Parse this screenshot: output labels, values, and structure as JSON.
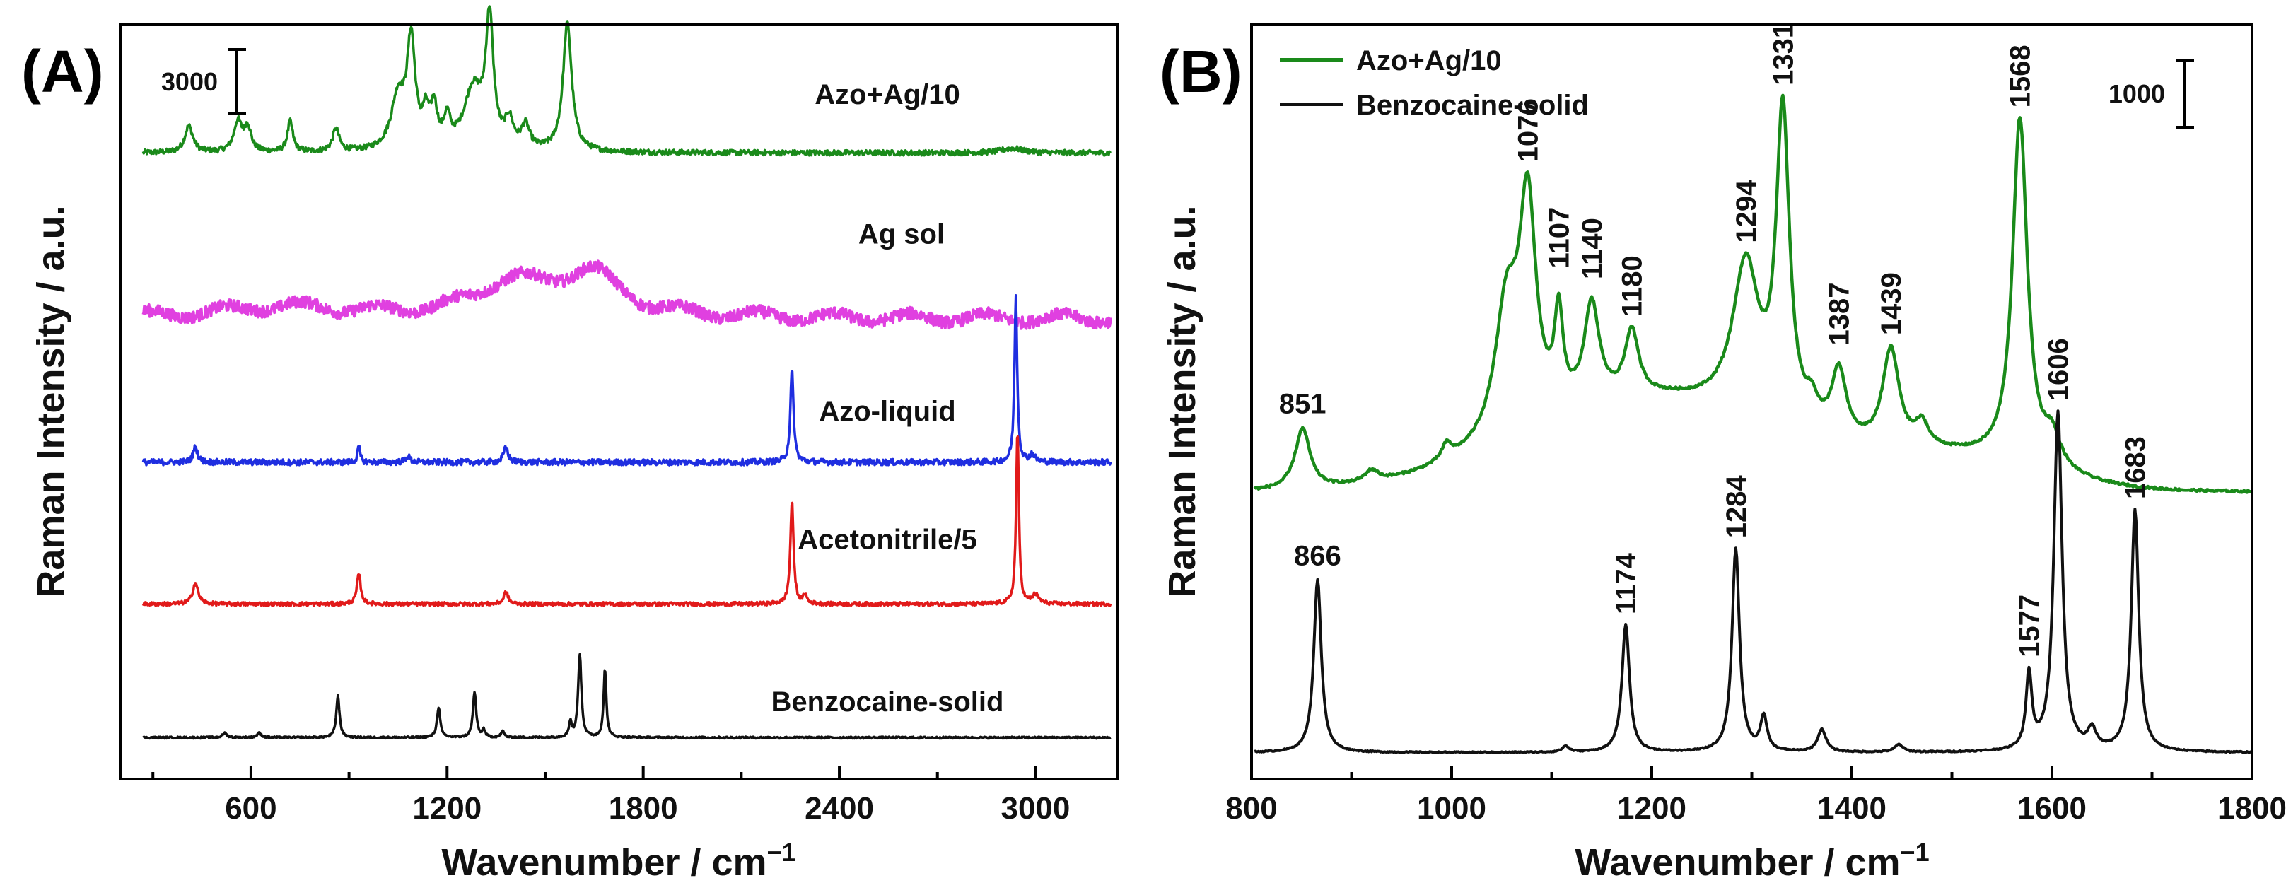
{
  "colors": {
    "azo_ag": "#1a8a1a",
    "ag_sol": "#e040e0",
    "azo_liquid": "#1f2ee0",
    "acetonitrile": "#e11a1a",
    "benzocaine": "#111111"
  },
  "chart_data": [
    {
      "panel": "(A)",
      "type": "line",
      "xlabel": "Wavenumber / cm",
      "xlabel_superscript": "−1",
      "ylabel": "Raman Intensity / a.u.",
      "xlim": [
        200,
        3250
      ],
      "xticks": [
        "600",
        "1200",
        "1800",
        "2400",
        "3000"
      ],
      "scale_bar": {
        "label": "3000"
      },
      "series": [
        {
          "name": "Azo+Ag/10",
          "color": "#1a8a1a",
          "baseline": 0.83,
          "noise": 0.0035,
          "ripple": 0,
          "peaks": [
            [
              410,
              0.035,
              15
            ],
            [
              560,
              0.04,
              15
            ],
            [
              590,
              0.032,
              12
            ],
            [
              720,
              0.04,
              10
            ],
            [
              860,
              0.03,
              12
            ],
            [
              1050,
              0.07,
              25
            ],
            [
              1090,
              0.14,
              15
            ],
            [
              1135,
              0.04,
              12
            ],
            [
              1160,
              0.05,
              12
            ],
            [
              1200,
              0.035,
              12
            ],
            [
              1280,
              0.08,
              35
            ],
            [
              1330,
              0.165,
              14
            ],
            [
              1390,
              0.035,
              15
            ],
            [
              1440,
              0.03,
              15
            ],
            [
              1568,
              0.17,
              16
            ],
            [
              2930,
              0.006,
              40
            ]
          ]
        },
        {
          "name": "Ag sol",
          "color": "#e040e0",
          "baseline": 0.61,
          "noise": 0.008,
          "ripple": 0.012,
          "peaks": [
            [
              1400,
              0.045,
              140
            ],
            [
              1640,
              0.055,
              110
            ],
            [
              700,
              0.015,
              250
            ]
          ]
        },
        {
          "name": "Azo-liquid",
          "color": "#1f2ee0",
          "baseline": 0.42,
          "noise": 0.004,
          "ripple": 0,
          "peaks": [
            [
              430,
              0.02,
              8
            ],
            [
              930,
              0.02,
              5
            ],
            [
              1080,
              0.008,
              8
            ],
            [
              1380,
              0.02,
              8
            ],
            [
              2255,
              0.12,
              6
            ],
            [
              2940,
              0.22,
              5
            ],
            [
              2990,
              0.01,
              10
            ]
          ]
        },
        {
          "name": "Acetonitrile/5",
          "color": "#e11a1a",
          "baseline": 0.232,
          "noise": 0.0025,
          "ripple": 0,
          "peaks": [
            [
              430,
              0.028,
              10
            ],
            [
              930,
              0.04,
              7
            ],
            [
              1380,
              0.016,
              8
            ],
            [
              2255,
              0.135,
              6
            ],
            [
              2295,
              0.012,
              6
            ],
            [
              2945,
              0.23,
              5
            ],
            [
              3000,
              0.012,
              12
            ]
          ]
        },
        {
          "name": "Benzocaine-solid",
          "color": "#111111",
          "baseline": 0.055,
          "noise": 0.0012,
          "ripple": 0,
          "peaks": [
            [
              520,
              0.006,
              8
            ],
            [
              625,
              0.006,
              8
            ],
            [
              866,
              0.055,
              6
            ],
            [
              1174,
              0.04,
              6
            ],
            [
              1284,
              0.06,
              6
            ],
            [
              1312,
              0.01,
              5
            ],
            [
              1370,
              0.008,
              6
            ],
            [
              1577,
              0.02,
              5
            ],
            [
              1606,
              0.11,
              6
            ],
            [
              1683,
              0.09,
              5
            ]
          ]
        }
      ]
    },
    {
      "panel": "(B)",
      "type": "line",
      "xlabel": "Wavenumber / cm",
      "xlabel_superscript": "−1",
      "ylabel": "Raman Intensity / a.u.",
      "xlim": [
        800,
        1800
      ],
      "xticks": [
        "800",
        "1000",
        "1200",
        "1400",
        "1600",
        "1800"
      ],
      "scale_bar": {
        "label": "1000"
      },
      "legend": [
        "Azo+Ag/10",
        "Benzocaine-solid"
      ],
      "series": [
        {
          "name": "Azo+Ag/10",
          "color": "#1a8a1a",
          "baseline": 0.38,
          "noise": 0.0015,
          "broad": [
            [
              1200,
              0.12,
              180
            ],
            [
              1500,
              0.04,
              120
            ]
          ],
          "peaks": [
            [
              851,
              0.08,
              9
            ],
            [
              920,
              0.015,
              8
            ],
            [
              995,
              0.02,
              6
            ],
            [
              1055,
              0.17,
              14
            ],
            [
              1076,
              0.29,
              10
            ],
            [
              1107,
              0.12,
              5
            ],
            [
              1140,
              0.13,
              9
            ],
            [
              1180,
              0.085,
              8
            ],
            [
              1294,
              0.2,
              16
            ],
            [
              1331,
              0.41,
              8
            ],
            [
              1360,
              0.03,
              8
            ],
            [
              1387,
              0.09,
              9
            ],
            [
              1439,
              0.13,
              10
            ],
            [
              1470,
              0.03,
              8
            ],
            [
              1568,
              0.46,
              9
            ],
            [
              1600,
              0.04,
              10
            ]
          ]
        },
        {
          "name": "Benzocaine-solid",
          "color": "#111111",
          "baseline": 0.035,
          "noise": 0.0008,
          "broad": [],
          "peaks": [
            [
              866,
              0.23,
              4.5
            ],
            [
              1114,
              0.008,
              4
            ],
            [
              1174,
              0.17,
              4.5
            ],
            [
              1284,
              0.27,
              4.5
            ],
            [
              1312,
              0.045,
              4
            ],
            [
              1370,
              0.03,
              5
            ],
            [
              1447,
              0.01,
              5
            ],
            [
              1577,
              0.1,
              3.5
            ],
            [
              1606,
              0.45,
              5
            ],
            [
              1640,
              0.025,
              5
            ],
            [
              1683,
              0.32,
              4.5
            ]
          ]
        }
      ],
      "peak_labels": [
        {
          "text": "851",
          "x": 851,
          "series": "Azo+Ag/10",
          "rotated": false
        },
        {
          "text": "1076",
          "x": 1076,
          "series": "Azo+Ag/10",
          "rotated": true
        },
        {
          "text": "1107",
          "x": 1107,
          "series": "Azo+Ag/10",
          "rotated": true
        },
        {
          "text": "1140",
          "x": 1140,
          "series": "Azo+Ag/10",
          "rotated": true
        },
        {
          "text": "1180",
          "x": 1180,
          "series": "Azo+Ag/10",
          "rotated": true
        },
        {
          "text": "1294",
          "x": 1294,
          "series": "Azo+Ag/10",
          "rotated": true
        },
        {
          "text": "1331",
          "x": 1331,
          "series": "Azo+Ag/10",
          "rotated": true
        },
        {
          "text": "1387",
          "x": 1387,
          "series": "Azo+Ag/10",
          "rotated": true
        },
        {
          "text": "1439",
          "x": 1439,
          "series": "Azo+Ag/10",
          "rotated": true
        },
        {
          "text": "1568",
          "x": 1568,
          "series": "Azo+Ag/10",
          "rotated": true
        },
        {
          "text": "866",
          "x": 866,
          "series": "Benzocaine-solid",
          "rotated": false
        },
        {
          "text": "1174",
          "x": 1174,
          "series": "Benzocaine-solid",
          "rotated": true
        },
        {
          "text": "1284",
          "x": 1284,
          "series": "Benzocaine-solid",
          "rotated": true
        },
        {
          "text": "1577",
          "x": 1577,
          "series": "Benzocaine-solid",
          "rotated": true
        },
        {
          "text": "1606",
          "x": 1606,
          "series": "Benzocaine-solid",
          "rotated": true
        },
        {
          "text": "1683",
          "x": 1683,
          "series": "Benzocaine-solid",
          "rotated": true
        }
      ]
    }
  ]
}
